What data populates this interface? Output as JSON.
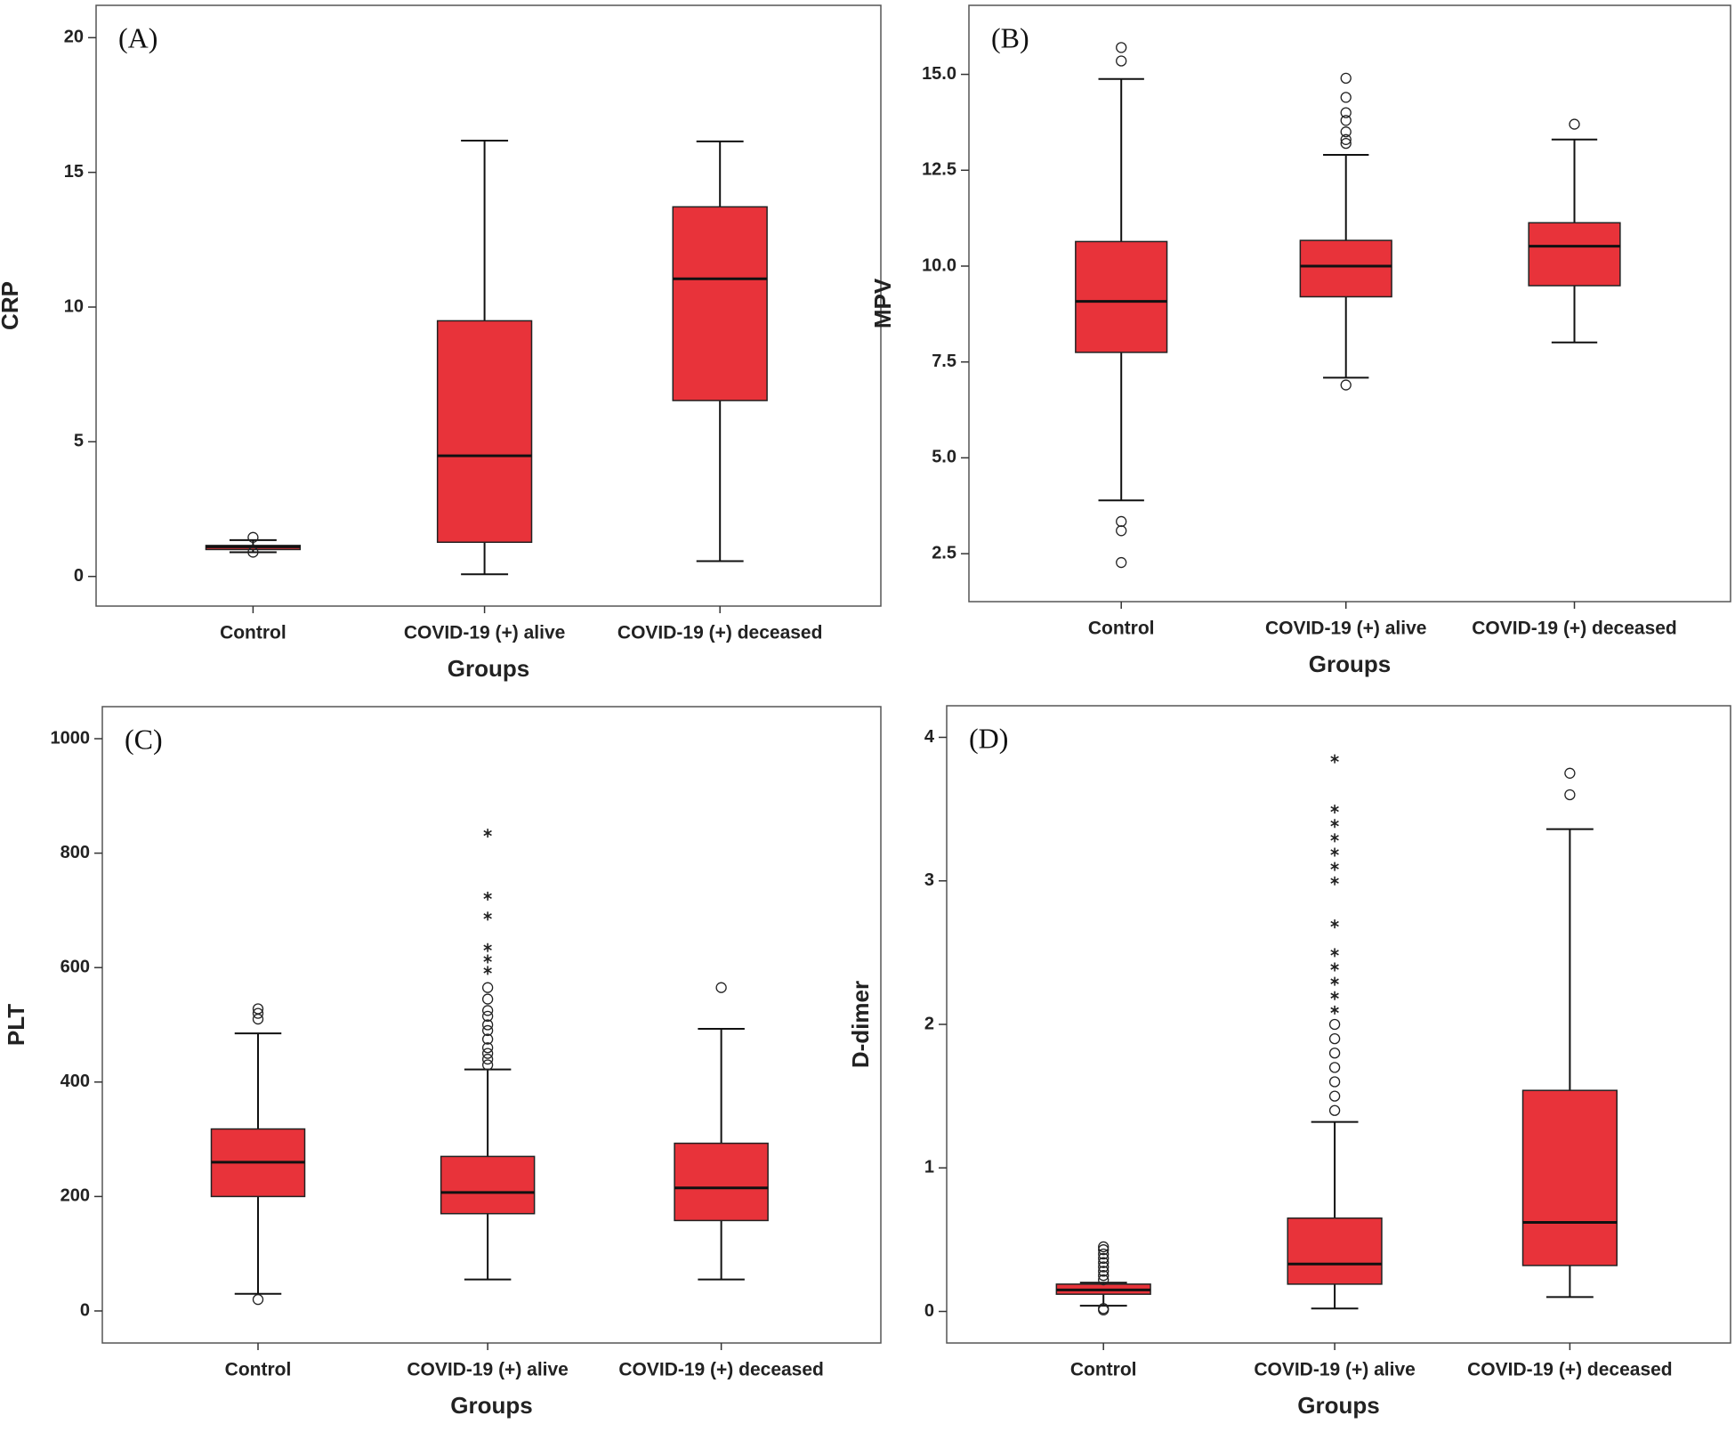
{
  "chart_data": [
    {
      "type": "box",
      "title": "(A)",
      "ylabel": "CRP",
      "xlabel": "Groups",
      "color": "#e8333a",
      "categories": [
        "Control",
        "COVID-19 (+) alive",
        "COVID-19 (+)  deceased"
      ],
      "ylim": [
        -1.1,
        21.2
      ],
      "yticks": [
        0,
        5,
        10,
        15,
        20
      ],
      "boxes": [
        {
          "whisker_low": 0.9,
          "q1": 1.0,
          "median": 1.1,
          "q3": 1.15,
          "whisker_high": 1.35,
          "outliers": [
            1.45,
            0.9
          ],
          "extremes": []
        },
        {
          "whisker_low": 0.08,
          "q1": 1.27,
          "median": 4.48,
          "q3": 9.49,
          "whisker_high": 16.18,
          "outliers": [],
          "extremes": []
        },
        {
          "whisker_low": 0.57,
          "q1": 6.53,
          "median": 11.05,
          "q3": 13.72,
          "whisker_high": 16.15,
          "outliers": [],
          "extremes": []
        }
      ]
    },
    {
      "type": "box",
      "title": "(B)",
      "ylabel": "MPV",
      "xlabel": "Groups",
      "color": "#e8333a",
      "categories": [
        "Control",
        "COVID-19 (+) alive",
        "COVID-19 (+)  deceased"
      ],
      "ylim": [
        1.25,
        16.8
      ],
      "yticks": [
        {
          "value": 2.5,
          "label": "2.5"
        },
        {
          "value": 5,
          "label": "5.0"
        },
        {
          "value": 7.5,
          "label": "7.5"
        },
        {
          "value": 10,
          "label": "10.0"
        },
        {
          "value": 12.5,
          "label": "12.5"
        },
        {
          "value": 15,
          "label": "15.0"
        }
      ],
      "boxes": [
        {
          "whisker_low": 3.89,
          "q1": 7.75,
          "median": 9.08,
          "q3": 10.64,
          "whisker_high": 14.88,
          "outliers": [
            15.7,
            15.35,
            3.34,
            3.1,
            2.27
          ],
          "extremes": []
        },
        {
          "whisker_low": 7.09,
          "q1": 9.2,
          "median": 10.0,
          "q3": 10.67,
          "whisker_high": 12.9,
          "outliers": [
            6.9,
            13.2,
            13.3,
            13.5,
            13.8,
            14.0,
            14.4,
            14.9
          ],
          "extremes": []
        },
        {
          "whisker_low": 8.01,
          "q1": 9.49,
          "median": 10.52,
          "q3": 11.13,
          "whisker_high": 13.3,
          "outliers": [
            13.7
          ],
          "extremes": []
        }
      ]
    },
    {
      "type": "box",
      "title": "(C)",
      "ylabel": "PLT",
      "xlabel": "Groups",
      "color": "#e8333a",
      "categories": [
        "Control",
        "COVID-19 (+) alive",
        "COVID-19 (+) deceased"
      ],
      "ylim": [
        -56,
        1056
      ],
      "yticks": [
        0,
        200,
        400,
        600,
        800,
        1000
      ],
      "boxes": [
        {
          "whisker_low": 30,
          "q1": 200,
          "median": 260,
          "q3": 318,
          "whisker_high": 485,
          "outliers": [
            20,
            510,
            520,
            528
          ],
          "extremes": []
        },
        {
          "whisker_low": 55,
          "q1": 170,
          "median": 207,
          "q3": 270,
          "whisker_high": 422,
          "outliers": [
            430,
            440,
            450,
            460,
            475,
            490,
            500,
            515,
            525,
            545,
            565
          ],
          "extremes": [
            595,
            615,
            635,
            690,
            725,
            835
          ]
        },
        {
          "whisker_low": 55,
          "q1": 158,
          "median": 215,
          "q3": 293,
          "whisker_high": 493,
          "outliers": [
            565
          ],
          "extremes": []
        }
      ]
    },
    {
      "type": "box",
      "title": "(D)",
      "ylabel": "D-dimer",
      "xlabel": "Groups",
      "color": "#e8333a",
      "categories": [
        "Control",
        "COVID-19 (+) alive",
        "COVID-19 (+)  deceased"
      ],
      "ylim": [
        -0.22,
        4.22
      ],
      "yticks": [
        0,
        1,
        2,
        3,
        4
      ],
      "boxes": [
        {
          "whisker_low": 0.04,
          "q1": 0.12,
          "median": 0.15,
          "q3": 0.19,
          "whisker_high": 0.2,
          "outliers": [
            0.22,
            0.25,
            0.28,
            0.31,
            0.34,
            0.37,
            0.4,
            0.43,
            0.45,
            0.02,
            0.01
          ],
          "extremes": []
        },
        {
          "whisker_low": 0.02,
          "q1": 0.19,
          "median": 0.33,
          "q3": 0.65,
          "whisker_high": 1.32,
          "outliers": [
            1.4,
            1.5,
            1.6,
            1.7,
            1.8,
            1.9,
            2.0
          ],
          "extremes": [
            2.1,
            2.2,
            2.3,
            2.4,
            2.5,
            2.7,
            3.0,
            3.1,
            3.2,
            3.3,
            3.4,
            3.5,
            3.85
          ]
        },
        {
          "whisker_low": 0.1,
          "q1": 0.32,
          "median": 0.62,
          "q3": 1.54,
          "whisker_high": 3.36,
          "outliers": [
            3.6,
            3.75
          ],
          "extremes": []
        }
      ]
    }
  ]
}
